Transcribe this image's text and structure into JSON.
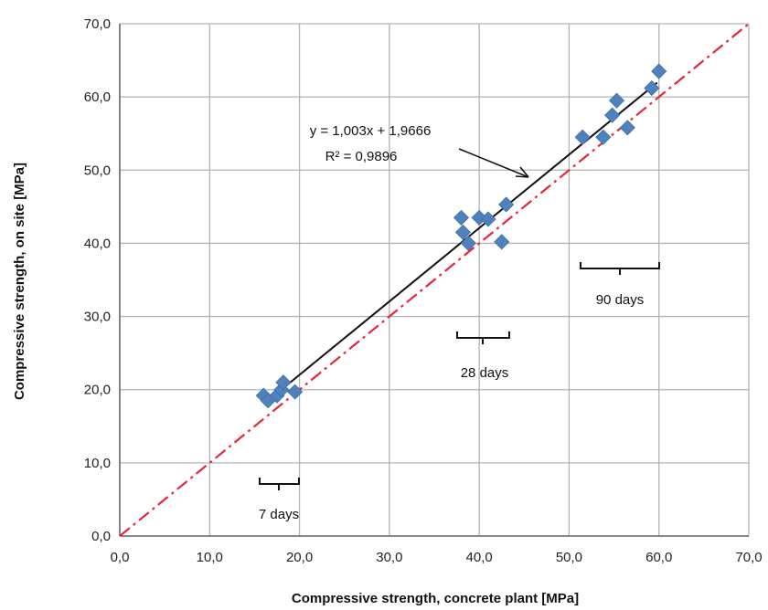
{
  "chart_data": {
    "type": "scatter",
    "xlabel": "Compressive strength, concrete plant [MPa]",
    "ylabel": "Compressive strength, on site  [MPa]",
    "xlim": [
      0,
      70
    ],
    "ylim": [
      0,
      70
    ],
    "x_ticks": [
      "0,0",
      "10,0",
      "20,0",
      "30,0",
      "40,0",
      "50,0",
      "60,0",
      "70,0"
    ],
    "y_ticks": [
      "0,0",
      "10,0",
      "20,0",
      "30,0",
      "40,0",
      "50,0",
      "60,0",
      "70,0"
    ],
    "grid": true,
    "colors": {
      "points": "#4f81bd",
      "trend": "#111111",
      "identity": "#e8253a",
      "grid": "#b3b3b3"
    },
    "series": [
      {
        "marker": "diamond",
        "points": [
          [
            16.0,
            19.2
          ],
          [
            16.5,
            18.5
          ],
          [
            17.5,
            19.2
          ],
          [
            18.0,
            20.0
          ],
          [
            18.2,
            21.0
          ],
          [
            19.5,
            19.7
          ],
          [
            38.0,
            43.5
          ],
          [
            38.2,
            41.5
          ],
          [
            38.8,
            40.0
          ],
          [
            40.0,
            43.5
          ],
          [
            41.0,
            43.3
          ],
          [
            42.5,
            40.2
          ],
          [
            43.0,
            45.3
          ],
          [
            51.5,
            54.5
          ],
          [
            53.8,
            54.5
          ],
          [
            54.8,
            57.5
          ],
          [
            55.3,
            59.5
          ],
          [
            56.5,
            55.8
          ],
          [
            59.2,
            61.2
          ],
          [
            60.0,
            63.5
          ]
        ]
      }
    ],
    "trendline": {
      "slope": 1.003,
      "intercept": 1.9666,
      "x_range": [
        16.5,
        59.8
      ]
    },
    "identity_line": {
      "x_range": [
        0,
        70
      ]
    },
    "equation_text": "y = 1,003x + 1,9666",
    "r2_text": "R² = 0,9896",
    "group_labels": [
      "7 days",
      "28 days",
      "90 days"
    ]
  }
}
